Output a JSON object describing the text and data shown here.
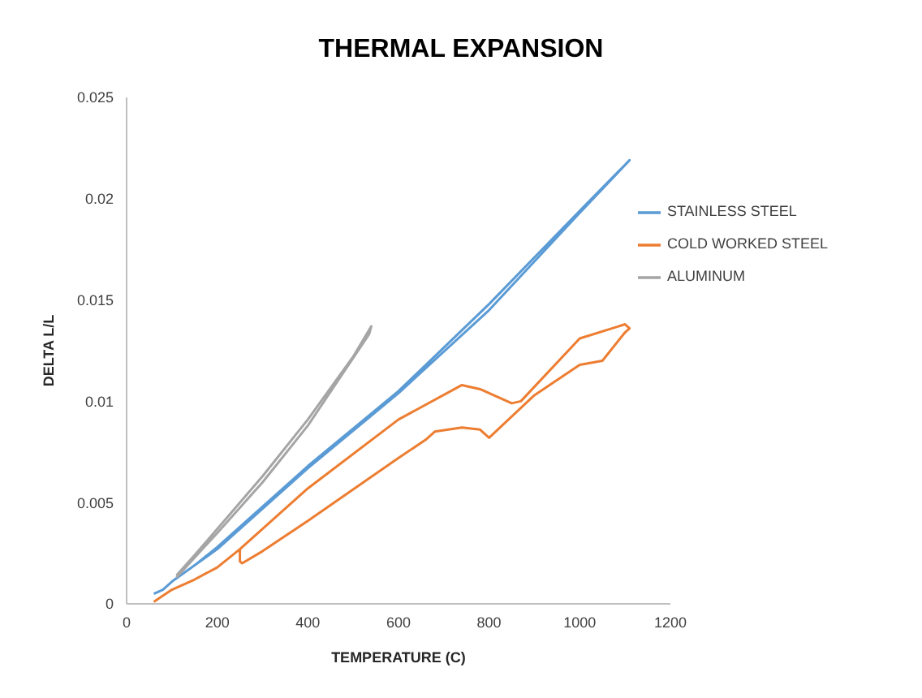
{
  "chart_data": {
    "type": "line",
    "title": "THERMAL EXPANSION",
    "xlabel": "TEMPERATURE (C)",
    "ylabel": "DELTA L/L",
    "xlim": [
      0,
      1200
    ],
    "xticks": [
      0,
      200,
      400,
      600,
      800,
      1000,
      1200
    ],
    "ylim": [
      0,
      0.025
    ],
    "yticks": [
      0,
      0.005,
      0.01,
      0.015,
      0.02,
      0.025
    ],
    "grid": false,
    "legend": "top right",
    "marker": "none",
    "line_style": "solid",
    "series": [
      {
        "name": "STAINLESS STEEL",
        "color": "#5b9bd5",
        "x": [
          60,
          80,
          100,
          150,
          200,
          400,
          600,
          800,
          1000,
          1110,
          1000,
          800,
          600,
          400,
          200,
          100
        ],
        "values": [
          0.0005,
          0.0007,
          0.0011,
          0.0019,
          0.0028,
          0.0068,
          0.0105,
          0.0148,
          0.0194,
          0.0219,
          0.0193,
          0.0145,
          0.0104,
          0.0067,
          0.0027,
          0.0011
        ]
      },
      {
        "name": "COLD WORKED STEEL",
        "color": "#ed7d31",
        "x": [
          60,
          100,
          150,
          200,
          250,
          400,
          600,
          740,
          780,
          820,
          850,
          870,
          1000,
          1100,
          1110,
          1100,
          1050,
          1000,
          900,
          800,
          780,
          740,
          680,
          660,
          600,
          400,
          300,
          255,
          250,
          250
        ],
        "values": [
          0.0001,
          0.0007,
          0.0012,
          0.0018,
          0.0027,
          0.0057,
          0.0091,
          0.0108,
          0.0106,
          0.0102,
          0.0099,
          0.01,
          0.0131,
          0.0138,
          0.0136,
          0.0134,
          0.012,
          0.0118,
          0.0103,
          0.0082,
          0.0086,
          0.0087,
          0.0085,
          0.0081,
          0.0072,
          0.0041,
          0.0026,
          0.002,
          0.0021,
          0.0027
        ]
      },
      {
        "name": "ALUMINUM",
        "color": "#a5a5a5",
        "x": [
          110,
          130,
          150,
          200,
          300,
          400,
          500,
          540,
          535,
          400,
          300,
          200,
          110
        ],
        "values": [
          0.0014,
          0.0019,
          0.0024,
          0.0037,
          0.0063,
          0.0091,
          0.0122,
          0.0137,
          0.0133,
          0.0088,
          0.006,
          0.0035,
          0.0013
        ]
      }
    ]
  }
}
